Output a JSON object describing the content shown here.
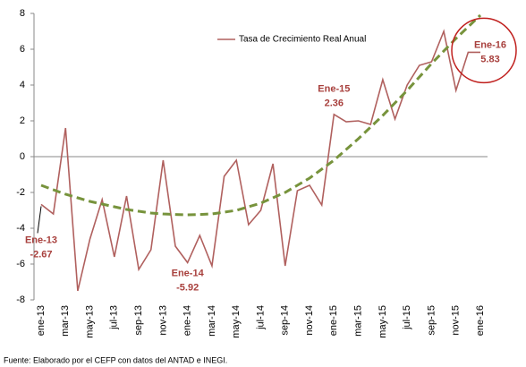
{
  "chart_data": {
    "type": "line",
    "categories": [
      "ene-13",
      null,
      "mar-13",
      null,
      "may-13",
      null,
      "jul-13",
      null,
      "sep-13",
      null,
      "nov-13",
      null,
      "ene-14",
      null,
      "mar-14",
      null,
      "may-14",
      null,
      "jul-14",
      null,
      "sep-14",
      null,
      "nov-14",
      null,
      "ene-15",
      null,
      "mar-15",
      null,
      "may-15",
      null,
      "jul-15",
      null,
      "sep-15",
      null,
      "nov-15",
      null,
      "ene-16"
    ],
    "series": [
      {
        "name": "Tasa de Crecimiento Real Anual",
        "color": "#b0605e",
        "values": [
          -2.67,
          -3.2,
          1.6,
          -7.5,
          -4.6,
          -2.4,
          -5.6,
          -2.2,
          -6.3,
          -5.2,
          -0.2,
          -5.0,
          -5.92,
          -4.4,
          -6.1,
          -1.1,
          -0.2,
          -3.8,
          -3.0,
          -0.4,
          -6.1,
          -1.9,
          -1.6,
          -2.7,
          2.36,
          1.95,
          2.0,
          1.8,
          4.3,
          2.1,
          4.0,
          5.1,
          5.3,
          7.0,
          3.7,
          5.83,
          5.83
        ]
      },
      {
        "color": "#77933c",
        "dashed": true,
        "values": [
          -1.6,
          -1.85,
          -2.1,
          -2.3,
          -2.5,
          -2.65,
          -2.8,
          -2.95,
          -3.05,
          -3.15,
          -3.2,
          -3.23,
          -3.25,
          -3.23,
          -3.2,
          -3.1,
          -3.0,
          -2.8,
          -2.6,
          -2.3,
          -2.0,
          -1.6,
          -1.2,
          -0.7,
          -0.2,
          0.4,
          1.0,
          1.65,
          2.3,
          3.0,
          3.7,
          4.45,
          5.2,
          5.9,
          6.6,
          7.25,
          7.9
        ]
      }
    ],
    "annotations": [
      "Ene-13",
      "Ene-14",
      "Ene-15",
      "Ene-16"
    ],
    "ylim": [
      -8,
      8
    ],
    "yticks": [
      -8,
      -6,
      -4,
      -2,
      0,
      2,
      4,
      6,
      8
    ],
    "grid": false,
    "legend": "top",
    "source": "Fuente: Elaborado por el CEFP con datos del ANTAD e INEGI."
  }
}
